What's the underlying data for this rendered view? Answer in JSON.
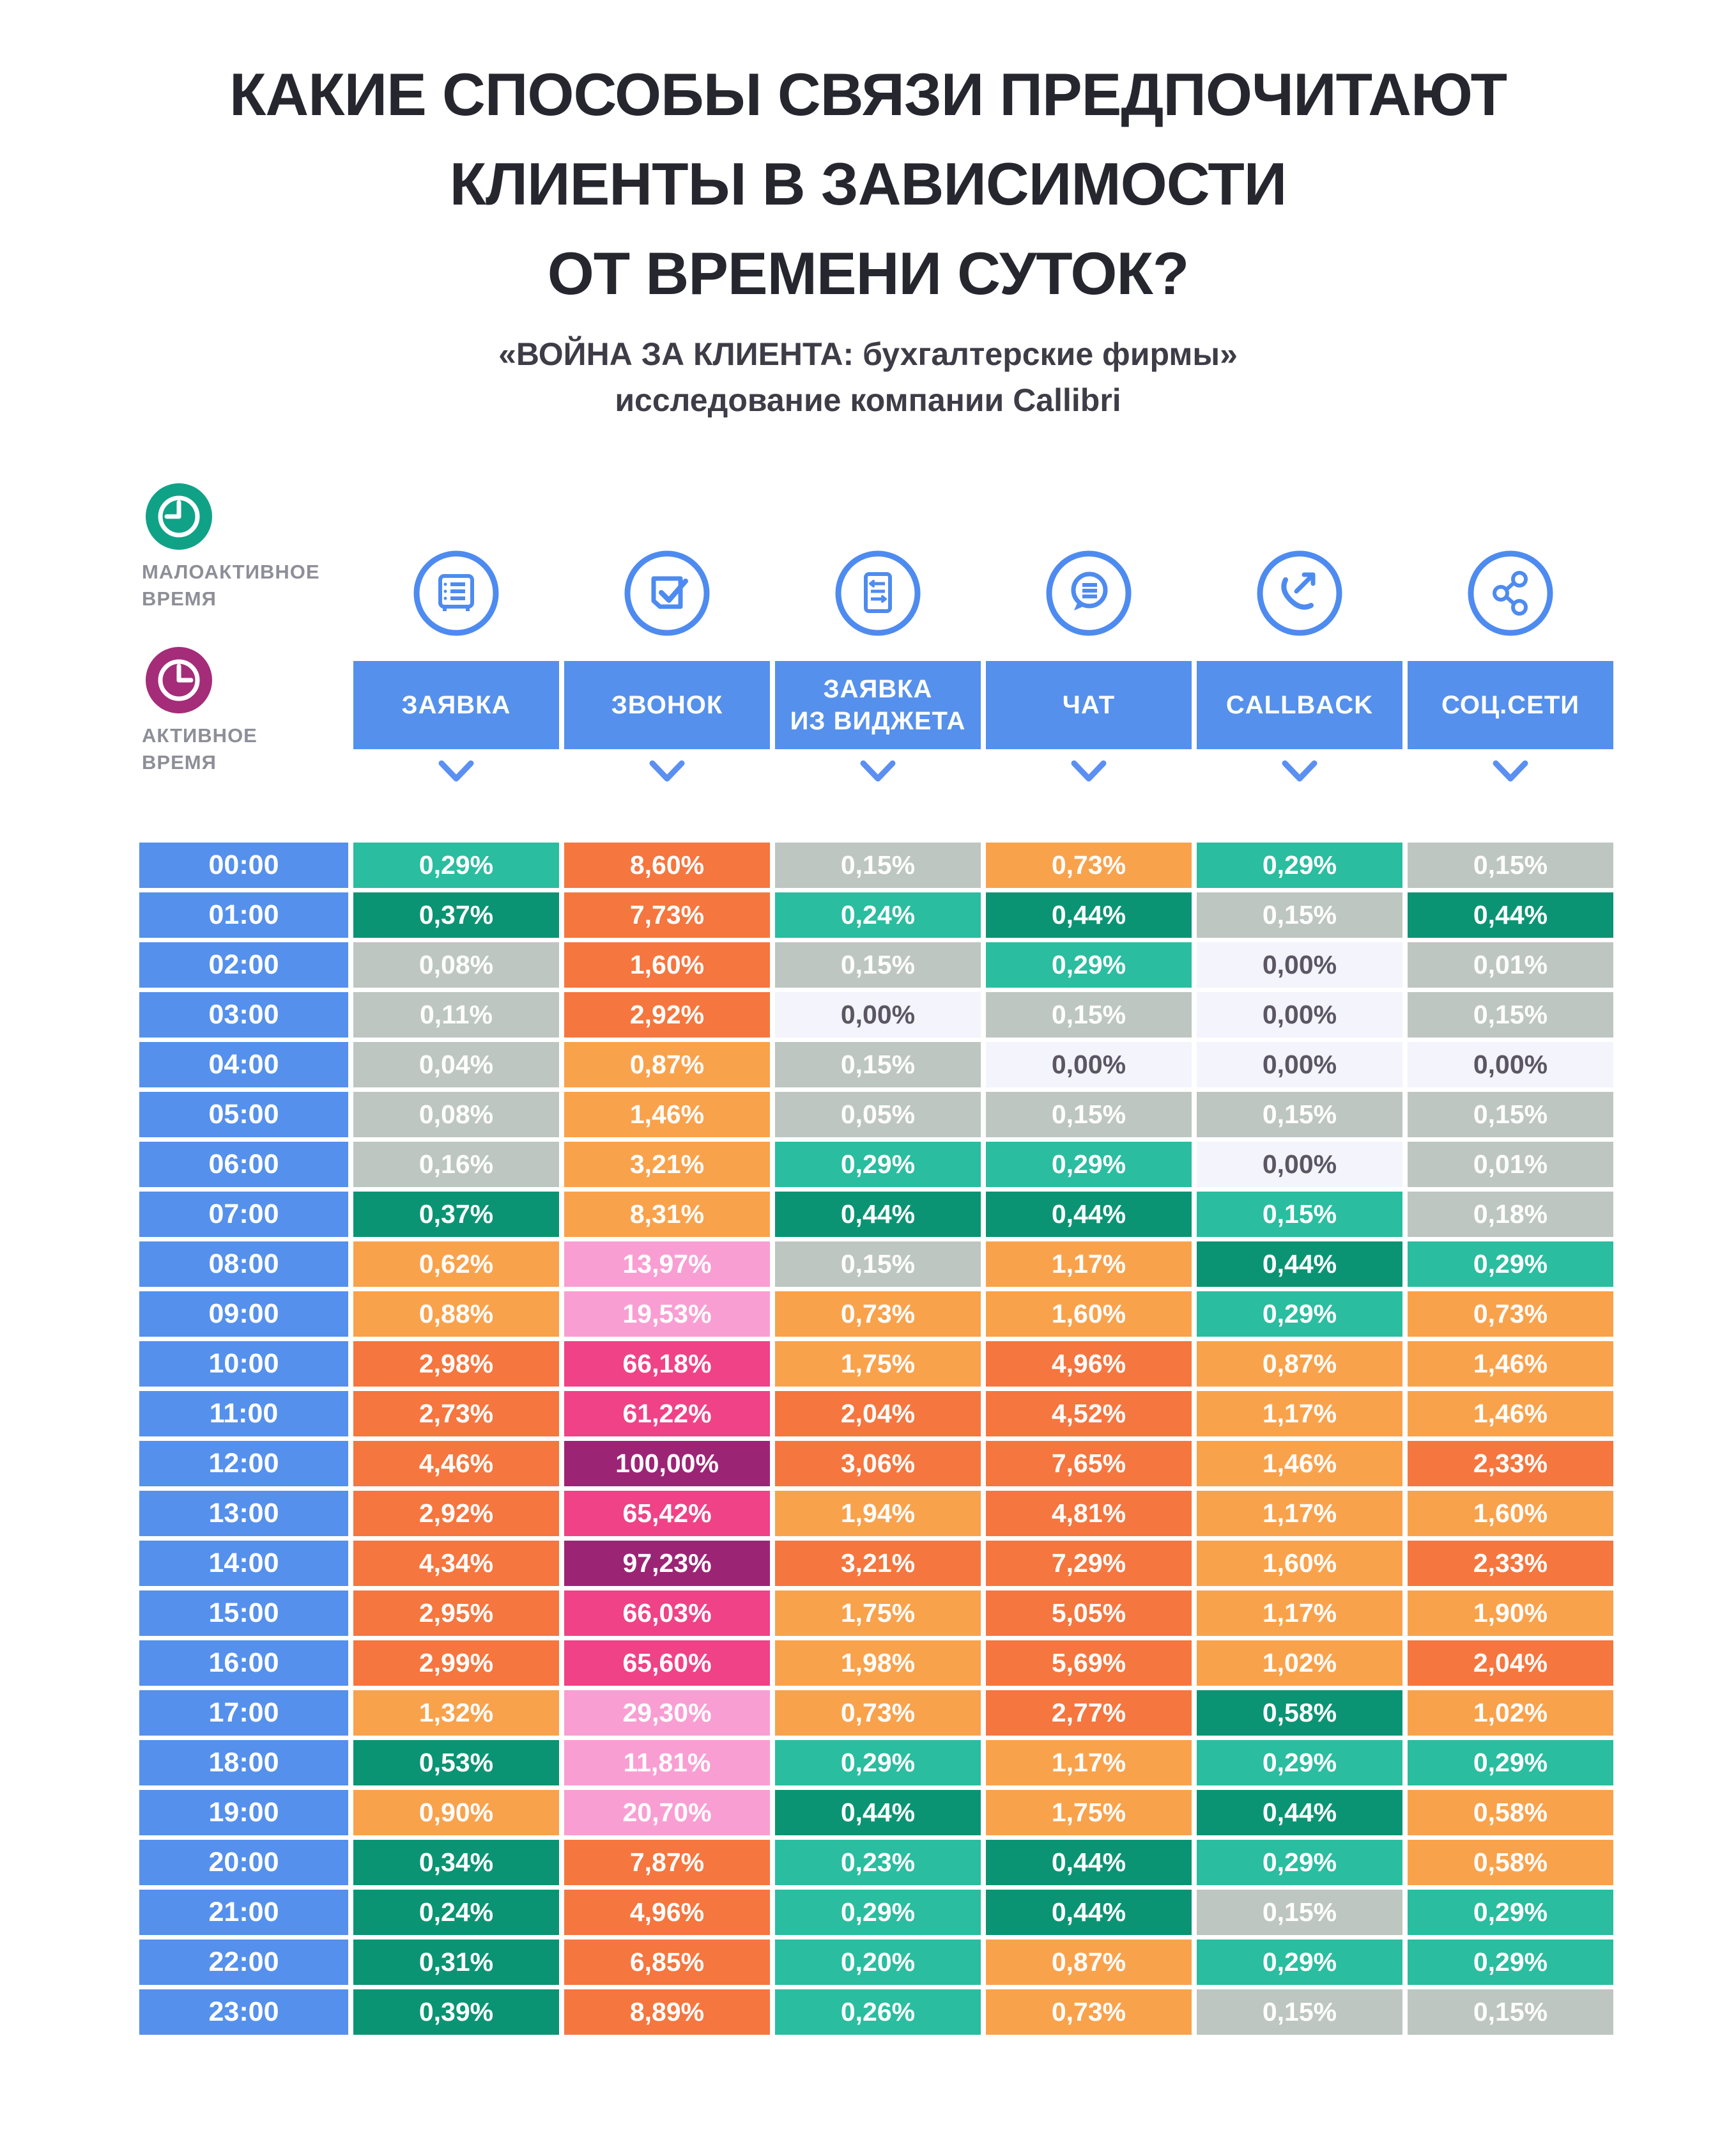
{
  "title": {
    "lines": [
      "КАКИЕ СПОСОБЫ СВЯЗИ ПРЕДПОЧИТАЮТ",
      "КЛИЕНТЫ  В ЗАВИСИМОСТИ",
      "ОТ ВРЕМЕНИ СУТОК?"
    ]
  },
  "subtitle": {
    "line1": "«ВОЙНА ЗА КЛИЕНТА: бухгалтерские фирмы»",
    "line2": "исследование компании Callibri"
  },
  "legend": {
    "low": {
      "line1": "МАЛОАКТИВНОЕ",
      "line2": "ВРЕМЯ",
      "icon": "clock-icon",
      "color": "#10a287"
    },
    "high": {
      "line1": "АКТИВНОЕ",
      "line2": "ВРЕМЯ",
      "icon": "clock-icon",
      "color": "#a42c78"
    }
  },
  "columns": [
    {
      "label": "ЗАЯВКА",
      "icon": "form-safe-icon"
    },
    {
      "label": "ЗВОНОК",
      "icon": "document-check-icon"
    },
    {
      "label": "ЗАЯВКА\nИЗ ВИДЖЕТА",
      "icon": "widget-form-icon"
    },
    {
      "label": "ЧАТ",
      "icon": "chat-bubble-icon"
    },
    {
      "label": "CALLBACK",
      "icon": "callback-phone-icon"
    },
    {
      "label": "СОЦ.СЕТИ",
      "icon": "share-icon"
    }
  ],
  "palette": {
    "blue": "#5590ec",
    "teal": "#2abd9f",
    "green": "#0b9473",
    "gray": "#bdc6c1",
    "whitecell": "#f3f4fc",
    "orange": "#f9a24c",
    "orangedark": "#f5763f",
    "pink": "#f99ed3",
    "hotpink": "#ef4287",
    "purple": "#9c2475",
    "iconblue": "#4e8bf0",
    "legendgreen": "#10a287",
    "legendmagenta": "#a42c78",
    "darktext": "#5c5664",
    "titlecolor": "#26262e",
    "subtitlecolor": "#3e3d47",
    "legendtext": "#8e8e98"
  },
  "rows": [
    {
      "time": "00:00",
      "cells": [
        {
          "v": "0,29%",
          "c": "teal"
        },
        {
          "v": "8,60%",
          "c": "orangedark"
        },
        {
          "v": "0,15%",
          "c": "gray"
        },
        {
          "v": "0,73%",
          "c": "orange"
        },
        {
          "v": "0,29%",
          "c": "teal"
        },
        {
          "v": "0,15%",
          "c": "gray"
        }
      ]
    },
    {
      "time": "01:00",
      "cells": [
        {
          "v": "0,37%",
          "c": "green"
        },
        {
          "v": "7,73%",
          "c": "orangedark"
        },
        {
          "v": "0,24%",
          "c": "teal"
        },
        {
          "v": "0,44%",
          "c": "green"
        },
        {
          "v": "0,15%",
          "c": "gray"
        },
        {
          "v": "0,44%",
          "c": "green"
        }
      ]
    },
    {
      "time": "02:00",
      "cells": [
        {
          "v": "0,08%",
          "c": "gray"
        },
        {
          "v": "1,60%",
          "c": "orangedark"
        },
        {
          "v": "0,15%",
          "c": "gray"
        },
        {
          "v": "0,29%",
          "c": "teal"
        },
        {
          "v": "0,00%",
          "c": "white"
        },
        {
          "v": "0,01%",
          "c": "gray"
        }
      ]
    },
    {
      "time": "03:00",
      "cells": [
        {
          "v": "0,11%",
          "c": "gray"
        },
        {
          "v": "2,92%",
          "c": "orangedark"
        },
        {
          "v": "0,00%",
          "c": "white"
        },
        {
          "v": "0,15%",
          "c": "gray"
        },
        {
          "v": "0,00%",
          "c": "white"
        },
        {
          "v": "0,15%",
          "c": "gray"
        }
      ]
    },
    {
      "time": "04:00",
      "cells": [
        {
          "v": "0,04%",
          "c": "gray"
        },
        {
          "v": "0,87%",
          "c": "orange"
        },
        {
          "v": "0,15%",
          "c": "gray"
        },
        {
          "v": "0,00%",
          "c": "white"
        },
        {
          "v": "0,00%",
          "c": "white"
        },
        {
          "v": "0,00%",
          "c": "white"
        }
      ]
    },
    {
      "time": "05:00",
      "cells": [
        {
          "v": "0,08%",
          "c": "gray"
        },
        {
          "v": "1,46%",
          "c": "orange"
        },
        {
          "v": "0,05%",
          "c": "gray"
        },
        {
          "v": "0,15%",
          "c": "gray"
        },
        {
          "v": "0,15%",
          "c": "gray"
        },
        {
          "v": "0,15%",
          "c": "gray"
        }
      ]
    },
    {
      "time": "06:00",
      "cells": [
        {
          "v": "0,16%",
          "c": "gray"
        },
        {
          "v": "3,21%",
          "c": "orange"
        },
        {
          "v": "0,29%",
          "c": "teal"
        },
        {
          "v": "0,29%",
          "c": "teal"
        },
        {
          "v": "0,00%",
          "c": "white"
        },
        {
          "v": "0,01%",
          "c": "gray"
        }
      ]
    },
    {
      "time": "07:00",
      "cells": [
        {
          "v": "0,37%",
          "c": "green"
        },
        {
          "v": "8,31%",
          "c": "orange"
        },
        {
          "v": "0,44%",
          "c": "green"
        },
        {
          "v": "0,44%",
          "c": "green"
        },
        {
          "v": "0,15%",
          "c": "teal"
        },
        {
          "v": "0,18%",
          "c": "gray"
        }
      ]
    },
    {
      "time": "08:00",
      "cells": [
        {
          "v": "0,62%",
          "c": "orange"
        },
        {
          "v": "13,97%",
          "c": "pink"
        },
        {
          "v": "0,15%",
          "c": "gray"
        },
        {
          "v": "1,17%",
          "c": "orange"
        },
        {
          "v": "0,44%",
          "c": "green"
        },
        {
          "v": "0,29%",
          "c": "teal"
        }
      ]
    },
    {
      "time": "09:00",
      "cells": [
        {
          "v": "0,88%",
          "c": "orange"
        },
        {
          "v": "19,53%",
          "c": "pink"
        },
        {
          "v": "0,73%",
          "c": "orange"
        },
        {
          "v": "1,60%",
          "c": "orange"
        },
        {
          "v": "0,29%",
          "c": "teal"
        },
        {
          "v": "0,73%",
          "c": "orange"
        }
      ]
    },
    {
      "time": "10:00",
      "cells": [
        {
          "v": "2,98%",
          "c": "orangedark"
        },
        {
          "v": "66,18%",
          "c": "hotpink"
        },
        {
          "v": "1,75%",
          "c": "orange"
        },
        {
          "v": "4,96%",
          "c": "orangedark"
        },
        {
          "v": "0,87%",
          "c": "orange"
        },
        {
          "v": "1,46%",
          "c": "orange"
        }
      ]
    },
    {
      "time": "11:00",
      "cells": [
        {
          "v": "2,73%",
          "c": "orangedark"
        },
        {
          "v": "61,22%",
          "c": "hotpink"
        },
        {
          "v": "2,04%",
          "c": "orangedark"
        },
        {
          "v": "4,52%",
          "c": "orangedark"
        },
        {
          "v": "1,17%",
          "c": "orange"
        },
        {
          "v": "1,46%",
          "c": "orange"
        }
      ]
    },
    {
      "time": "12:00",
      "cells": [
        {
          "v": "4,46%",
          "c": "orangedark"
        },
        {
          "v": "100,00%",
          "c": "purple"
        },
        {
          "v": "3,06%",
          "c": "orangedark"
        },
        {
          "v": "7,65%",
          "c": "orangedark"
        },
        {
          "v": "1,46%",
          "c": "orange"
        },
        {
          "v": "2,33%",
          "c": "orangedark"
        }
      ]
    },
    {
      "time": "13:00",
      "cells": [
        {
          "v": "2,92%",
          "c": "orangedark"
        },
        {
          "v": "65,42%",
          "c": "hotpink"
        },
        {
          "v": "1,94%",
          "c": "orange"
        },
        {
          "v": "4,81%",
          "c": "orangedark"
        },
        {
          "v": "1,17%",
          "c": "orange"
        },
        {
          "v": "1,60%",
          "c": "orange"
        }
      ]
    },
    {
      "time": "14:00",
      "cells": [
        {
          "v": "4,34%",
          "c": "orangedark"
        },
        {
          "v": "97,23%",
          "c": "purple"
        },
        {
          "v": "3,21%",
          "c": "orangedark"
        },
        {
          "v": "7,29%",
          "c": "orangedark"
        },
        {
          "v": "1,60%",
          "c": "orange"
        },
        {
          "v": "2,33%",
          "c": "orangedark"
        }
      ]
    },
    {
      "time": "15:00",
      "cells": [
        {
          "v": "2,95%",
          "c": "orangedark"
        },
        {
          "v": "66,03%",
          "c": "hotpink"
        },
        {
          "v": "1,75%",
          "c": "orange"
        },
        {
          "v": "5,05%",
          "c": "orangedark"
        },
        {
          "v": "1,17%",
          "c": "orange"
        },
        {
          "v": "1,90%",
          "c": "orange"
        }
      ]
    },
    {
      "time": "16:00",
      "cells": [
        {
          "v": "2,99%",
          "c": "orangedark"
        },
        {
          "v": "65,60%",
          "c": "hotpink"
        },
        {
          "v": "1,98%",
          "c": "orange"
        },
        {
          "v": "5,69%",
          "c": "orangedark"
        },
        {
          "v": "1,02%",
          "c": "orange"
        },
        {
          "v": "2,04%",
          "c": "orangedark"
        }
      ]
    },
    {
      "time": "17:00",
      "cells": [
        {
          "v": "1,32%",
          "c": "orange"
        },
        {
          "v": "29,30%",
          "c": "pink"
        },
        {
          "v": "0,73%",
          "c": "orange"
        },
        {
          "v": "2,77%",
          "c": "orangedark"
        },
        {
          "v": "0,58%",
          "c": "green"
        },
        {
          "v": "1,02%",
          "c": "orange"
        }
      ]
    },
    {
      "time": "18:00",
      "cells": [
        {
          "v": "0,53%",
          "c": "green"
        },
        {
          "v": "11,81%",
          "c": "pink"
        },
        {
          "v": "0,29%",
          "c": "teal"
        },
        {
          "v": "1,17%",
          "c": "orange"
        },
        {
          "v": "0,29%",
          "c": "teal"
        },
        {
          "v": "0,29%",
          "c": "teal"
        }
      ]
    },
    {
      "time": "19:00",
      "cells": [
        {
          "v": "0,90%",
          "c": "orange"
        },
        {
          "v": "20,70%",
          "c": "pink"
        },
        {
          "v": "0,44%",
          "c": "green"
        },
        {
          "v": "1,75%",
          "c": "orange"
        },
        {
          "v": "0,44%",
          "c": "green"
        },
        {
          "v": "0,58%",
          "c": "orange"
        }
      ]
    },
    {
      "time": "20:00",
      "cells": [
        {
          "v": "0,34%",
          "c": "green"
        },
        {
          "v": "7,87%",
          "c": "orangedark"
        },
        {
          "v": "0,23%",
          "c": "teal"
        },
        {
          "v": "0,44%",
          "c": "green"
        },
        {
          "v": "0,29%",
          "c": "teal"
        },
        {
          "v": "0,58%",
          "c": "orange"
        }
      ]
    },
    {
      "time": "21:00",
      "cells": [
        {
          "v": "0,24%",
          "c": "green"
        },
        {
          "v": "4,96%",
          "c": "orangedark"
        },
        {
          "v": "0,29%",
          "c": "teal"
        },
        {
          "v": "0,44%",
          "c": "green"
        },
        {
          "v": "0,15%",
          "c": "gray"
        },
        {
          "v": "0,29%",
          "c": "teal"
        }
      ]
    },
    {
      "time": "22:00",
      "cells": [
        {
          "v": "0,31%",
          "c": "green"
        },
        {
          "v": "6,85%",
          "c": "orangedark"
        },
        {
          "v": "0,20%",
          "c": "teal"
        },
        {
          "v": "0,87%",
          "c": "orange"
        },
        {
          "v": "0,29%",
          "c": "teal"
        },
        {
          "v": "0,29%",
          "c": "teal"
        }
      ]
    },
    {
      "time": "23:00",
      "cells": [
        {
          "v": "0,39%",
          "c": "green"
        },
        {
          "v": "8,89%",
          "c": "orangedark"
        },
        {
          "v": "0,26%",
          "c": "teal"
        },
        {
          "v": "0,73%",
          "c": "orange"
        },
        {
          "v": "0,15%",
          "c": "gray"
        },
        {
          "v": "0,15%",
          "c": "gray"
        }
      ]
    }
  ],
  "chart_data": {
    "type": "heatmap",
    "title": "КАКИЕ СПОСОБЫ СВЯЗИ ПРЕДПОЧИТАЮТ КЛИЕНТЫ В ЗАВИСИМОСТИ ОТ ВРЕМЕНИ СУТОК?",
    "subtitle": "«ВОЙНА ЗА КЛИЕНТА: бухгалтерские фирмы» исследование компании Callibri",
    "unit": "%",
    "x_categories": [
      "ЗАЯВКА",
      "ЗВОНОК",
      "ЗАЯВКА ИЗ ВИДЖЕТА",
      "ЧАТ",
      "CALLBACK",
      "СОЦ.СЕТИ"
    ],
    "y_categories": [
      "00:00",
      "01:00",
      "02:00",
      "03:00",
      "04:00",
      "05:00",
      "06:00",
      "07:00",
      "08:00",
      "09:00",
      "10:00",
      "11:00",
      "12:00",
      "13:00",
      "14:00",
      "15:00",
      "16:00",
      "17:00",
      "18:00",
      "19:00",
      "20:00",
      "21:00",
      "22:00",
      "23:00"
    ],
    "legend": [
      "МАЛОАКТИВНОЕ ВРЕМЯ",
      "АКТИВНОЕ ВРЕМЯ"
    ],
    "values": [
      [
        0.29,
        8.6,
        0.15,
        0.73,
        0.29,
        0.15
      ],
      [
        0.37,
        7.73,
        0.24,
        0.44,
        0.15,
        0.44
      ],
      [
        0.08,
        1.6,
        0.15,
        0.29,
        0.0,
        0.01
      ],
      [
        0.11,
        2.92,
        0.0,
        0.15,
        0.0,
        0.15
      ],
      [
        0.04,
        0.87,
        0.15,
        0.0,
        0.0,
        0.0
      ],
      [
        0.08,
        1.46,
        0.05,
        0.15,
        0.15,
        0.15
      ],
      [
        0.16,
        3.21,
        0.29,
        0.29,
        0.0,
        0.01
      ],
      [
        0.37,
        8.31,
        0.44,
        0.44,
        0.15,
        0.18
      ],
      [
        0.62,
        13.97,
        0.15,
        1.17,
        0.44,
        0.29
      ],
      [
        0.88,
        19.53,
        0.73,
        1.6,
        0.29,
        0.73
      ],
      [
        2.98,
        66.18,
        1.75,
        4.96,
        0.87,
        1.46
      ],
      [
        2.73,
        61.22,
        2.04,
        4.52,
        1.17,
        1.46
      ],
      [
        4.46,
        100.0,
        3.06,
        7.65,
        1.46,
        2.33
      ],
      [
        2.92,
        65.42,
        1.94,
        4.81,
        1.17,
        1.6
      ],
      [
        4.34,
        97.23,
        3.21,
        7.29,
        1.6,
        2.33
      ],
      [
        2.95,
        66.03,
        1.75,
        5.05,
        1.17,
        1.9
      ],
      [
        2.99,
        65.6,
        1.98,
        5.69,
        1.02,
        2.04
      ],
      [
        1.32,
        29.3,
        0.73,
        2.77,
        0.58,
        1.02
      ],
      [
        0.53,
        11.81,
        0.29,
        1.17,
        0.29,
        0.29
      ],
      [
        0.9,
        20.7,
        0.44,
        1.75,
        0.44,
        0.58
      ],
      [
        0.34,
        7.87,
        0.23,
        0.44,
        0.29,
        0.58
      ],
      [
        0.24,
        4.96,
        0.29,
        0.44,
        0.15,
        0.29
      ],
      [
        0.31,
        6.85,
        0.2,
        0.87,
        0.29,
        0.29
      ],
      [
        0.39,
        8.89,
        0.26,
        0.73,
        0.15,
        0.15
      ]
    ]
  }
}
